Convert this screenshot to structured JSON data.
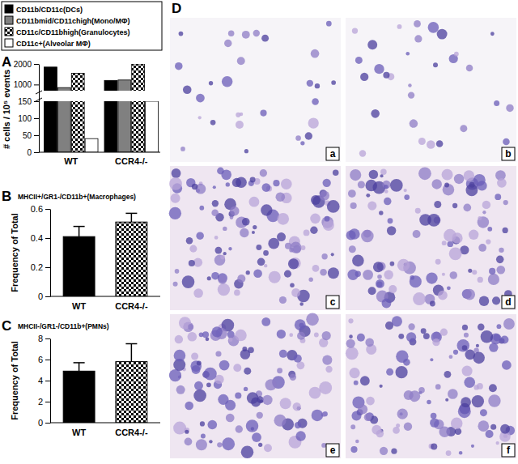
{
  "chart_data": [
    {
      "type": "bar",
      "panel": "A",
      "categories": [
        "WT",
        "CCR4-/-"
      ],
      "series": [
        {
          "name": "CD11b/CD11c(DCs)",
          "color": "#000000",
          "values": [
            1850,
            1200
          ]
        },
        {
          "name": "CD11bmid/CD11chigh(Mono/MΦ)",
          "color": "#808080",
          "values": [
            850,
            1220
          ]
        },
        {
          "name": "CD11c/CD11bhigh(Granulocytes)",
          "color": "checkered",
          "values": [
            1550,
            2000
          ]
        },
        {
          "name": "CD11c+(Alveolar MΦ)",
          "color": "#ffffff",
          "values": [
            40,
            150
          ]
        }
      ],
      "ylabel": "# cells / 10⁵ events",
      "ylim": [
        0,
        2000
      ],
      "ybreak": [
        150,
        700
      ],
      "yticks": [
        0,
        50,
        100,
        150,
        1000,
        2000
      ],
      "legend": "top"
    },
    {
      "type": "bar",
      "panel": "B",
      "title": "MHCII+/GR1-/CD11b+(Macrophages)",
      "categories": [
        "WT",
        "CCR4-/-"
      ],
      "values": [
        0.41,
        0.51
      ],
      "errors": [
        0.07,
        0.06
      ],
      "colors": [
        "#000000",
        "checkered"
      ],
      "ylabel": "Frequency of Total",
      "ylim": [
        0,
        0.6
      ],
      "yticks": [
        0,
        0.2,
        0.4,
        0.6
      ]
    },
    {
      "type": "bar",
      "panel": "C",
      "title": "MHCII-/GR1-/CD11b+(PMNs)",
      "categories": [
        "WT",
        "CCR4-/-"
      ],
      "values": [
        4.9,
        5.8
      ],
      "errors": [
        0.8,
        1.7
      ],
      "colors": [
        "#000000",
        "checkered"
      ],
      "ylabel": "Frequency of Total",
      "ylim": [
        0,
        8
      ],
      "yticks": [
        0,
        2,
        4,
        6,
        8
      ]
    }
  ],
  "images": {
    "panel": "D",
    "labels": [
      "a",
      "b",
      "c",
      "d",
      "e",
      "f"
    ]
  }
}
